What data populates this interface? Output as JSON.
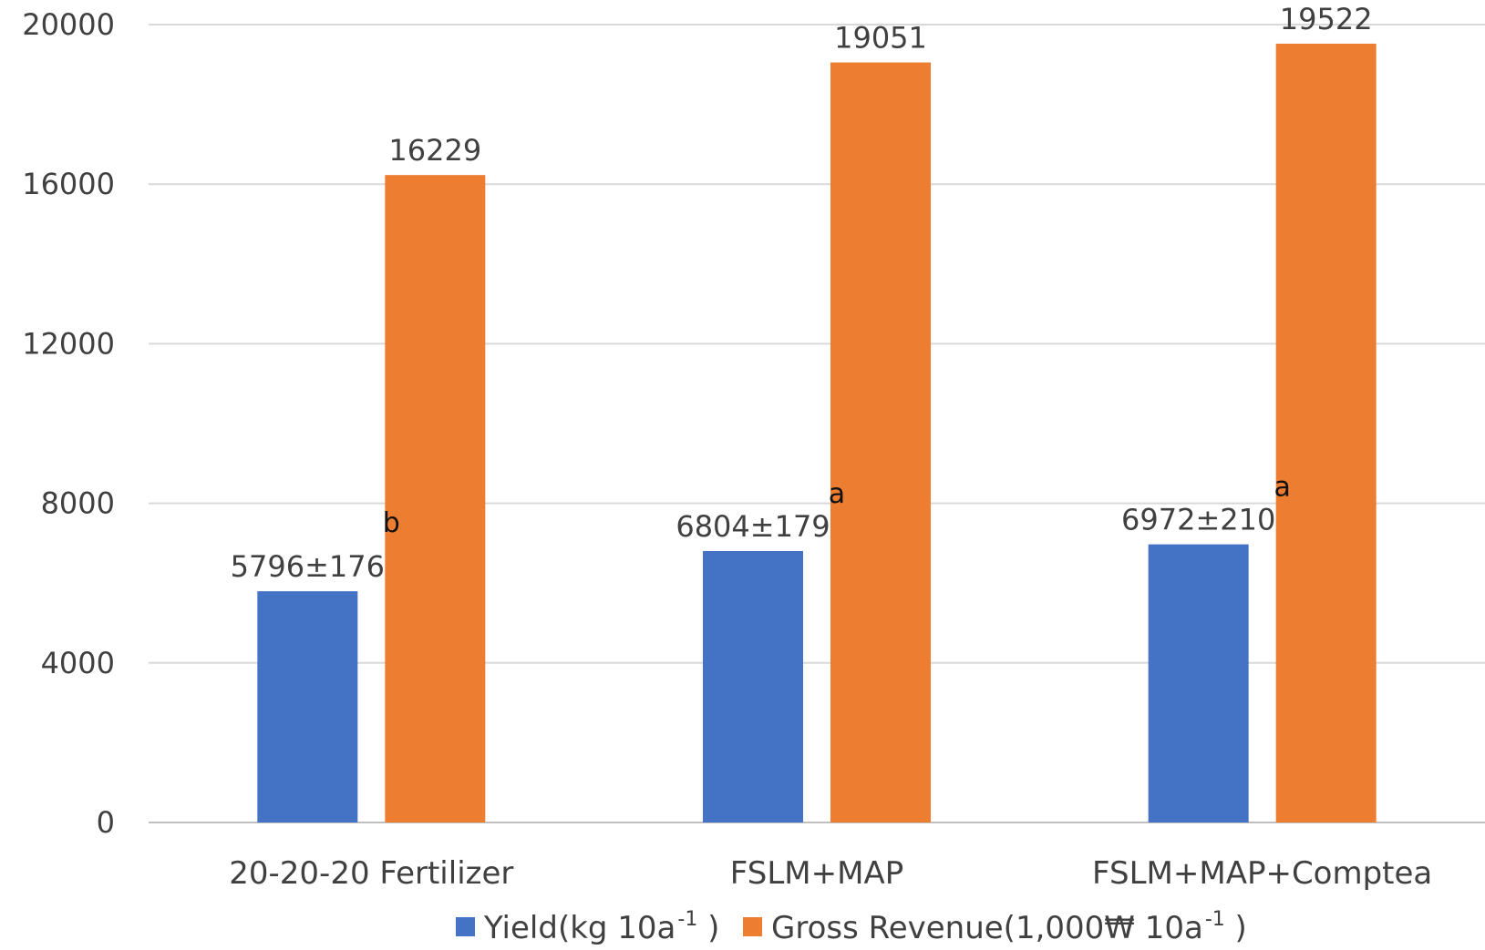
{
  "chart_data": {
    "type": "bar",
    "categories": [
      "20-20-20 Fertilizer",
      "FSLM+MAP",
      "FSLM+MAP+Comptea"
    ],
    "series": [
      {
        "name": "Yield(kg 10a-1 )",
        "values": [
          5796,
          6804,
          6972
        ],
        "labels": [
          "5796±176",
          "6804±179",
          "6972±210"
        ],
        "significance": [
          "b",
          "a",
          "a"
        ],
        "color": "#4472C4"
      },
      {
        "name": "Gross Revenue(1,000₩ 10a-1 )",
        "values": [
          16229,
          19051,
          19522
        ],
        "labels": [
          "16229",
          "19051",
          "19522"
        ],
        "color": "#ED7D31"
      }
    ],
    "yticks": [
      "0",
      "4000",
      "8000",
      "12000",
      "16000",
      "20000"
    ],
    "ylim": [
      0,
      20000
    ],
    "grid": true,
    "legend_position": "bottom",
    "legend": [
      {
        "text": "Yield(kg 10a",
        "sup": "-1",
        "tail": " )"
      },
      {
        "text": "Gross Revenue(1,000₩ 10a",
        "sup": "-1",
        "tail": " )"
      }
    ]
  }
}
